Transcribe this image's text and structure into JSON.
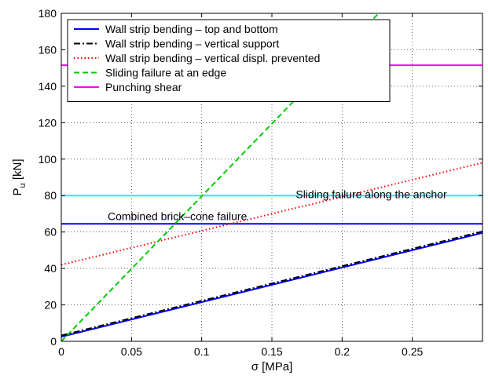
{
  "chart_data": {
    "type": "line",
    "xlabel": "σ [MPa]",
    "ylabel": "P",
    "ylabel_sub": "u",
    "ylabel_unit": " [kN]",
    "xlim": [
      0,
      0.3
    ],
    "ylim": [
      0,
      180
    ],
    "x_ticks": [
      0,
      0.05,
      0.1,
      0.15,
      0.2,
      0.25
    ],
    "x_tick_labels": [
      "0",
      "0.05",
      "0.1",
      "0.15",
      "0.2",
      "0.25"
    ],
    "y_ticks": [
      0,
      20,
      40,
      60,
      80,
      100,
      120,
      140,
      160,
      180
    ],
    "y_tick_labels": [
      "0",
      "20",
      "40",
      "60",
      "80",
      "100",
      "120",
      "140",
      "160",
      "180"
    ],
    "grid": true,
    "legend_position": "top-left",
    "series": [
      {
        "name": "Wall strip bending – top and bottom",
        "color": "#0000ff",
        "dash": "solid",
        "x": [
          0,
          0.3
        ],
        "y": [
          2.5,
          59.5
        ]
      },
      {
        "name": "Wall strip bending – vertical support",
        "color": "#000000",
        "dash": "dashdot",
        "x": [
          0,
          0.3
        ],
        "y": [
          3.2,
          60.3
        ]
      },
      {
        "name": "Wall strip bending – vertical displ. prevented",
        "color": "#ff0000",
        "dash": "dotted",
        "x": [
          0,
          0.3
        ],
        "y": [
          42,
          98
        ]
      },
      {
        "name": "Sliding failure at an edge",
        "color": "#00cc00",
        "dash": "dashed",
        "x": [
          0,
          0.226
        ],
        "y": [
          0,
          180
        ]
      },
      {
        "name": "Punching shear",
        "color": "#ff00ff",
        "dash": "solid",
        "x": [
          0,
          0.3
        ],
        "y": [
          151.5,
          151.5
        ]
      }
    ],
    "unlabeled_series": [
      {
        "color": "#00ffff",
        "dash": "solid",
        "x": [
          0,
          0.3
        ],
        "y": [
          80,
          80
        ]
      },
      {
        "color": "#0000ff",
        "dash": "solid",
        "x": [
          0,
          0.3
        ],
        "y": [
          64.5,
          64.5
        ]
      }
    ],
    "annotations": [
      {
        "text": "Sliding failure along the anchor",
        "x": 0.167,
        "y": 78.5
      },
      {
        "text": "Combined brick–cone failure",
        "x": 0.033,
        "y": 66.5
      }
    ]
  }
}
